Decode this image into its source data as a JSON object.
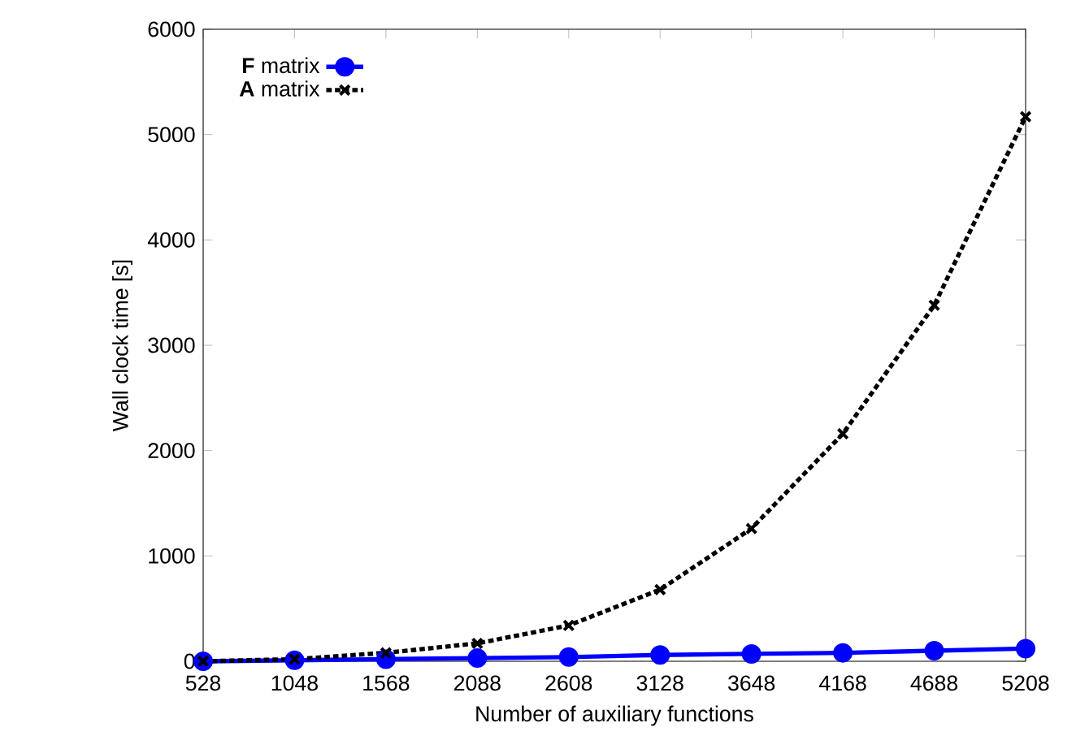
{
  "chart_data": {
    "type": "line",
    "xlabel": "Number of auxiliary functions",
    "ylabel": "Wall clock time [s]",
    "x": [
      528,
      1048,
      1568,
      2088,
      2608,
      3128,
      3648,
      4168,
      4688,
      5208
    ],
    "xlim": [
      528,
      5208
    ],
    "xticks": [
      528,
      1048,
      1568,
      2088,
      2608,
      3128,
      3648,
      4168,
      4688,
      5208
    ],
    "ylim": [
      0,
      6000
    ],
    "yticks": [
      0,
      1000,
      2000,
      3000,
      4000,
      5000,
      6000
    ],
    "legend": "top left",
    "grid": false,
    "series": [
      {
        "name": "**F** matrix",
        "color": "#0000ff",
        "marker": "circle",
        "line_style": "solid",
        "values": [
          0,
          10,
          20,
          30,
          40,
          60,
          70,
          80,
          100,
          120
        ]
      },
      {
        "name": "**A** matrix",
        "color": "#000000",
        "marker": "cross",
        "line_style": "dotted",
        "values": [
          0,
          20,
          80,
          170,
          340,
          680,
          1260,
          2160,
          3380,
          5170
        ]
      }
    ]
  }
}
